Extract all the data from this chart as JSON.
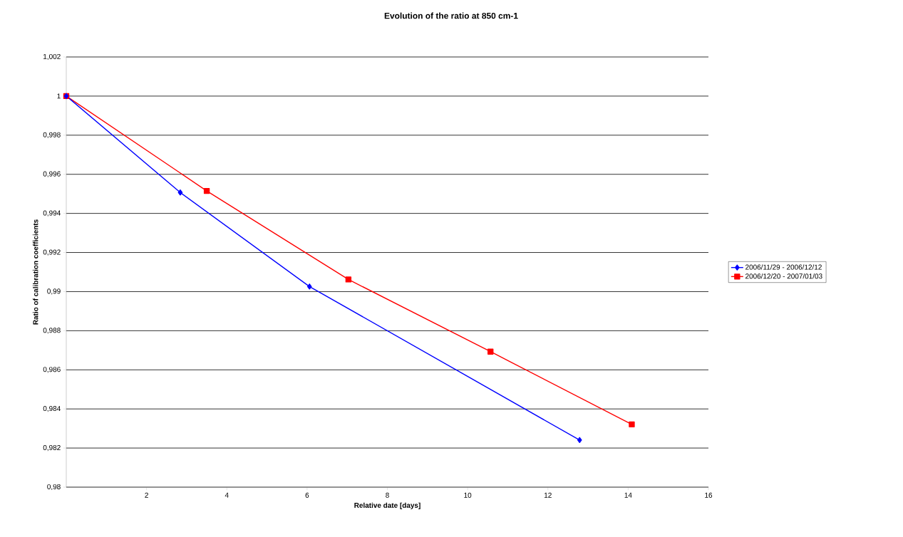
{
  "chart_data": {
    "type": "line",
    "title": "Evolution of the ratio at 850 cm-1",
    "xlabel": "Relative date [days]",
    "ylabel": "Ratio of calibration coefficients",
    "xlim": [
      0,
      16
    ],
    "xticks": [
      2,
      4,
      6,
      8,
      10,
      12,
      14,
      16
    ],
    "ylim": [
      0.98,
      1.002
    ],
    "yticks": [
      {
        "value": 0.98,
        "label": "0,98"
      },
      {
        "value": 0.982,
        "label": "0,982"
      },
      {
        "value": 0.984,
        "label": "0,984"
      },
      {
        "value": 0.986,
        "label": "0,986"
      },
      {
        "value": 0.988,
        "label": "0,988"
      },
      {
        "value": 0.99,
        "label": "0,99"
      },
      {
        "value": 0.992,
        "label": "0,992"
      },
      {
        "value": 0.994,
        "label": "0,994"
      },
      {
        "value": 0.996,
        "label": "0,996"
      },
      {
        "value": 0.998,
        "label": "0,998"
      },
      {
        "value": 1,
        "label": "1"
      },
      {
        "value": 1.002,
        "label": "1,002"
      }
    ],
    "grid": "y",
    "legend": "right",
    "series": [
      {
        "name": "2006/11/29 - 2006/12/12",
        "color": "#0000ff",
        "marker": "diamond",
        "x": [
          0,
          2.84,
          6.06,
          12.79
        ],
        "values": [
          1,
          0.99507,
          0.99026,
          0.98241
        ]
      },
      {
        "name": "2006/12/20 - 2007/01/03",
        "color": "#ff0000",
        "marker": "square",
        "x": [
          0,
          3.5,
          7.03,
          10.57,
          14.09
        ],
        "values": [
          1,
          0.99515,
          0.99062,
          0.98693,
          0.98321
        ]
      }
    ]
  }
}
